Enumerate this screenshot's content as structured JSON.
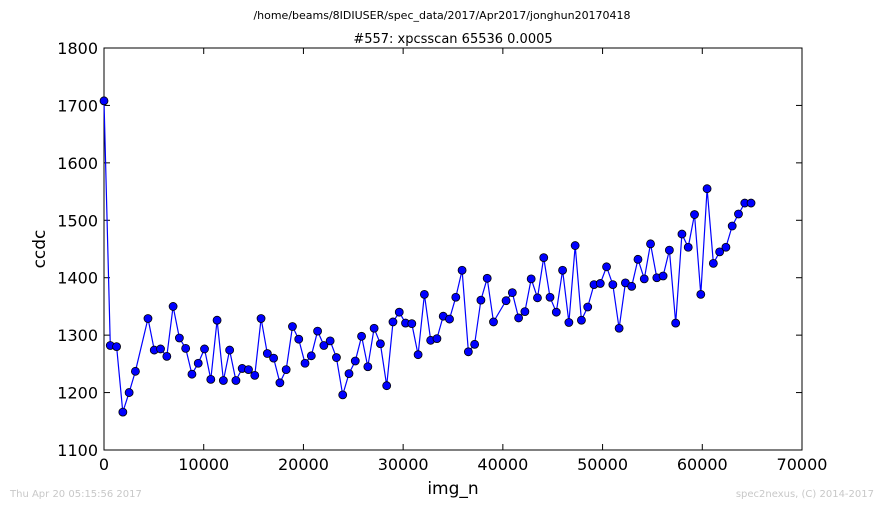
{
  "page": {
    "file_path": "/home/beams/8IDIUSER/spec_data/2017/Apr2017/jonghun20170418",
    "footer_left": "Thu Apr 20 05:15:56 2017",
    "footer_right": "spec2nexus, (C) 2014-2017"
  },
  "chart_data": {
    "type": "line",
    "title": "#557: xpcsscan 65536 0.0005",
    "xlabel": "img_n",
    "ylabel": "ccdc",
    "xlim": [
      0,
      70000
    ],
    "ylim": [
      1100,
      1800
    ],
    "xticks": [
      0,
      10000,
      20000,
      30000,
      40000,
      50000,
      60000,
      70000
    ],
    "xtick_labels": [
      "0",
      "10000",
      "20000",
      "30000",
      "40000",
      "50000",
      "60000",
      "70000"
    ],
    "yticks": [
      1100,
      1200,
      1300,
      1400,
      1500,
      1600,
      1700,
      1800
    ],
    "ytick_labels": [
      "1100",
      "1200",
      "1300",
      "1400",
      "1500",
      "1600",
      "1700",
      "1800"
    ],
    "grid": false,
    "series": [
      {
        "color": "#0000ff",
        "marker": "circle",
        "x": [
          0,
          630,
          1260,
          1890,
          2520,
          3150,
          4410,
          5040,
          5670,
          6300,
          6930,
          7560,
          8190,
          8820,
          9450,
          10080,
          10710,
          11340,
          11970,
          12600,
          13230,
          13860,
          14490,
          15120,
          15750,
          16380,
          17010,
          17640,
          18270,
          18900,
          19530,
          20160,
          20790,
          21420,
          22050,
          22680,
          23310,
          23940,
          24570,
          25200,
          25830,
          26460,
          27090,
          27720,
          28350,
          28980,
          29610,
          30240,
          30870,
          31500,
          32130,
          32760,
          33390,
          34020,
          34650,
          35280,
          35910,
          36540,
          37170,
          37800,
          38430,
          39060,
          40320,
          40950,
          41580,
          42210,
          42840,
          43470,
          44100,
          44730,
          45360,
          45990,
          46620,
          47250,
          47880,
          48510,
          49140,
          49770,
          50400,
          51030,
          51660,
          52290,
          52920,
          53550,
          54180,
          54810,
          55440,
          56070,
          56700,
          57330,
          57960,
          58590,
          59220,
          59850,
          60480,
          61110,
          61740,
          62370,
          63000,
          63630,
          64260,
          64890
        ],
        "y": [
          1708,
          1282,
          1280,
          1166,
          1200,
          1237,
          1329,
          1274,
          1276,
          1263,
          1350,
          1295,
          1277,
          1232,
          1251,
          1276,
          1223,
          1326,
          1221,
          1274,
          1221,
          1242,
          1240,
          1230,
          1329,
          1268,
          1260,
          1217,
          1240,
          1315,
          1293,
          1251,
          1264,
          1307,
          1282,
          1290,
          1261,
          1196,
          1233,
          1255,
          1298,
          1245,
          1312,
          1285,
          1212,
          1323,
          1340,
          1321,
          1320,
          1266,
          1371,
          1291,
          1294,
          1333,
          1328,
          1366,
          1413,
          1271,
          1284,
          1361,
          1399,
          1323,
          1360,
          1374,
          1330,
          1341,
          1398,
          1365,
          1435,
          1366,
          1340,
          1413,
          1322,
          1456,
          1326,
          1349,
          1388,
          1390,
          1419,
          1388,
          1312,
          1391,
          1385,
          1432,
          1398,
          1459,
          1400,
          1403,
          1448,
          1321,
          1476,
          1453,
          1510,
          1371,
          1555,
          1425,
          1445,
          1453,
          1490,
          1511,
          1530,
          1530
        ]
      }
    ]
  }
}
